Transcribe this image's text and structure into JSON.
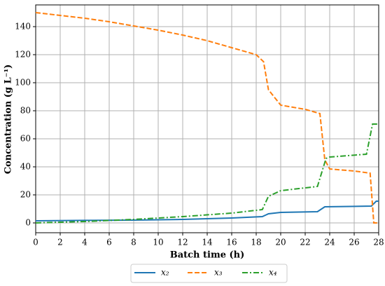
{
  "chart_data": {
    "type": "line",
    "xlabel": "Batch time (h)",
    "ylabel": "Concentration (g L⁻¹)",
    "xlim": [
      0,
      28
    ],
    "ylim": [
      -7,
      155.5
    ],
    "xticks": [
      0,
      2,
      4,
      6,
      8,
      10,
      12,
      14,
      16,
      18,
      20,
      22,
      24,
      26,
      28
    ],
    "yticks": [
      0,
      20,
      40,
      60,
      80,
      100,
      120,
      140
    ],
    "grid": true,
    "legend": "bottom",
    "series": [
      {
        "name": "x₂",
        "color": "#1f77b4",
        "linestyle": "solid",
        "x": [
          0,
          4,
          8,
          12,
          16,
          18.5,
          19,
          20,
          23,
          23.6,
          27.4,
          27.8,
          28
        ],
        "values": [
          1.5,
          1.8,
          2,
          2.5,
          3.5,
          4.5,
          6.5,
          7.5,
          8,
          11.5,
          12,
          15.5,
          15.5
        ]
      },
      {
        "name": "x₃",
        "color": "#ff7f0e",
        "linestyle": "dashed",
        "x": [
          0,
          2,
          4,
          6,
          8,
          10,
          12,
          14,
          16,
          18,
          18.6,
          19,
          20,
          22,
          23.2,
          23.6,
          24,
          26,
          27.3,
          27.6,
          28
        ],
        "values": [
          150,
          148,
          146,
          143.5,
          140.5,
          137.5,
          134,
          130,
          125,
          120,
          115,
          95,
          84,
          81,
          78,
          45,
          38.5,
          37,
          35.5,
          0,
          0
        ]
      },
      {
        "name": "x₄",
        "color": "#2ca02c",
        "linestyle": "dashdot",
        "x": [
          0,
          4,
          8,
          12,
          16,
          18.5,
          19,
          20,
          23,
          23.7,
          24,
          27,
          27.5,
          28
        ],
        "values": [
          0,
          1,
          2.5,
          4.5,
          7,
          9.5,
          19,
          23,
          26,
          46,
          47,
          49,
          70.5,
          70.5
        ]
      }
    ]
  }
}
